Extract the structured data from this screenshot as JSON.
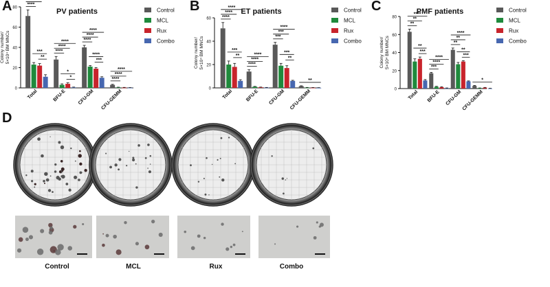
{
  "panels": {
    "a": {
      "letter": "A"
    },
    "b": {
      "letter": "B"
    },
    "c": {
      "letter": "C"
    },
    "d": {
      "letter": "D"
    }
  },
  "colors": {
    "Control": "#595959",
    "MCL": "#1f8a3c",
    "Rux": "#c8242c",
    "Combo": "#4767b0",
    "sig": "#111111"
  },
  "chart_data": [
    {
      "id": "A",
      "type": "bar",
      "title": "PV patients",
      "ylabel_line1": "Colony number/",
      "ylabel_line2": "5×10⁴ BM MNCs",
      "ylim": [
        0,
        80
      ],
      "yticks": [
        0,
        20,
        40,
        60,
        80
      ],
      "categories": [
        "Total",
        "BFU-E",
        "CFU-GM",
        "CFU-GEMM"
      ],
      "series": [
        {
          "name": "Control",
          "values": [
            71,
            28,
            40,
            3
          ],
          "errors": [
            6,
            3,
            2,
            0.5
          ]
        },
        {
          "name": "MCL",
          "values": [
            23,
            3,
            21,
            0.5
          ],
          "errors": [
            2,
            1,
            1,
            0.2
          ]
        },
        {
          "name": "Rux",
          "values": [
            22,
            4,
            19,
            0.3
          ],
          "errors": [
            2,
            1,
            1,
            0.2
          ]
        },
        {
          "name": "Combo",
          "values": [
            11,
            0.5,
            10,
            0.2
          ],
          "errors": [
            2,
            0.3,
            1,
            0.1
          ]
        }
      ],
      "significance": [
        {
          "cat": 0,
          "from": 0,
          "to": 3,
          "label": "****"
        },
        {
          "cat": 0,
          "from": 0,
          "to": 2,
          "label": "****"
        },
        {
          "cat": 0,
          "from": 0,
          "to": 1,
          "label": "****"
        },
        {
          "cat": 0,
          "from": 1,
          "to": 3,
          "label": "***"
        },
        {
          "cat": 0,
          "from": 2,
          "to": 3,
          "label": "**"
        },
        {
          "cat": 1,
          "from": 0,
          "to": 3,
          "label": "****"
        },
        {
          "cat": 1,
          "from": 0,
          "to": 2,
          "label": "****"
        },
        {
          "cat": 1,
          "from": 0,
          "to": 1,
          "label": "****"
        },
        {
          "cat": 1,
          "from": 1,
          "to": 3,
          "label": "*"
        },
        {
          "cat": 1,
          "from": 2,
          "to": 3,
          "label": "*"
        },
        {
          "cat": 2,
          "from": 0,
          "to": 3,
          "label": "****"
        },
        {
          "cat": 2,
          "from": 0,
          "to": 2,
          "label": "****"
        },
        {
          "cat": 2,
          "from": 0,
          "to": 1,
          "label": "****"
        },
        {
          "cat": 2,
          "from": 1,
          "to": 3,
          "label": "****"
        },
        {
          "cat": 2,
          "from": 2,
          "to": 3,
          "label": "***"
        },
        {
          "cat": 3,
          "from": 0,
          "to": 3,
          "label": "****"
        },
        {
          "cat": 3,
          "from": 0,
          "to": 2,
          "label": "****"
        },
        {
          "cat": 3,
          "from": 0,
          "to": 1,
          "label": "****"
        }
      ]
    },
    {
      "id": "B",
      "type": "bar",
      "title": "ET patients",
      "ylabel_line1": "Colony number/",
      "ylabel_line2": "5×10⁴ BM MNCs",
      "ylim": [
        0,
        60
      ],
      "yticks": [
        0,
        20,
        40,
        60
      ],
      "categories": [
        "Total",
        "BFU-E",
        "CFU-GM",
        "CFU-GEMM"
      ],
      "series": [
        {
          "name": "Control",
          "values": [
            51,
            14,
            37,
            1.5
          ],
          "errors": [
            5,
            1.5,
            2,
            0.3
          ]
        },
        {
          "name": "MCL",
          "values": [
            20,
            1,
            19,
            0.3
          ],
          "errors": [
            3,
            0.3,
            2,
            0.1
          ]
        },
        {
          "name": "Rux",
          "values": [
            18,
            0.5,
            17,
            0.2
          ],
          "errors": [
            3,
            0.2,
            2,
            0.1
          ]
        },
        {
          "name": "Combo",
          "values": [
            6,
            0.3,
            6,
            0.1
          ],
          "errors": [
            1,
            0.1,
            0.5,
            0.1
          ]
        }
      ],
      "significance": [
        {
          "cat": 0,
          "from": 0,
          "to": 3,
          "label": "****"
        },
        {
          "cat": 0,
          "from": 0,
          "to": 2,
          "label": "****"
        },
        {
          "cat": 0,
          "from": 0,
          "to": 1,
          "label": "****"
        },
        {
          "cat": 0,
          "from": 1,
          "to": 3,
          "label": "***"
        },
        {
          "cat": 0,
          "from": 2,
          "to": 3,
          "label": "**"
        },
        {
          "cat": 1,
          "from": 0,
          "to": 3,
          "label": "****"
        },
        {
          "cat": 1,
          "from": 0,
          "to": 2,
          "label": "****"
        },
        {
          "cat": 1,
          "from": 0,
          "to": 1,
          "label": "****"
        },
        {
          "cat": 2,
          "from": 0,
          "to": 3,
          "label": "****"
        },
        {
          "cat": 2,
          "from": 0,
          "to": 2,
          "label": "***"
        },
        {
          "cat": 2,
          "from": 0,
          "to": 1,
          "label": "***"
        },
        {
          "cat": 2,
          "from": 1,
          "to": 3,
          "label": "***"
        },
        {
          "cat": 2,
          "from": 2,
          "to": 3,
          "label": "**"
        },
        {
          "cat": 3,
          "from": 0,
          "to": 3,
          "label": "**"
        }
      ]
    },
    {
      "id": "C",
      "type": "bar",
      "title": "PMF patients",
      "ylabel_line1": "Colony number/",
      "ylabel_line2": "5×10⁴ BM MNCs",
      "ylim": [
        0,
        80
      ],
      "yticks": [
        0,
        20,
        40,
        60,
        80
      ],
      "categories": [
        "Total",
        "BFU-E",
        "CFU-GM",
        "CFU-GEMM"
      ],
      "series": [
        {
          "name": "Control",
          "values": [
            63,
            17,
            43,
            3
          ],
          "errors": [
            3,
            1,
            2,
            0.5
          ]
        },
        {
          "name": "MCL",
          "values": [
            30,
            2,
            27,
            0.5
          ],
          "errors": [
            3,
            0.5,
            2,
            0.2
          ]
        },
        {
          "name": "Rux",
          "values": [
            33,
            1.5,
            30,
            1
          ],
          "errors": [
            2,
            0.5,
            1,
            0.3
          ]
        },
        {
          "name": "Combo",
          "values": [
            9,
            0.5,
            8,
            0.2
          ],
          "errors": [
            1,
            0.2,
            0.5,
            0.1
          ]
        }
      ],
      "significance": [
        {
          "cat": 0,
          "from": 0,
          "to": 3,
          "label": "****"
        },
        {
          "cat": 0,
          "from": 0,
          "to": 2,
          "label": "**"
        },
        {
          "cat": 0,
          "from": 0,
          "to": 1,
          "label": "**"
        },
        {
          "cat": 0,
          "from": 1,
          "to": 3,
          "label": "**"
        },
        {
          "cat": 0,
          "from": 2,
          "to": 3,
          "label": "***"
        },
        {
          "cat": 1,
          "from": 0,
          "to": 3,
          "label": "****"
        },
        {
          "cat": 1,
          "from": 0,
          "to": 2,
          "label": "****"
        },
        {
          "cat": 1,
          "from": 0,
          "to": 1,
          "label": "***"
        },
        {
          "cat": 2,
          "from": 0,
          "to": 3,
          "label": "****"
        },
        {
          "cat": 2,
          "from": 0,
          "to": 2,
          "label": "**"
        },
        {
          "cat": 2,
          "from": 0,
          "to": 1,
          "label": "**"
        },
        {
          "cat": 2,
          "from": 1,
          "to": 3,
          "label": "**"
        },
        {
          "cat": 2,
          "from": 2,
          "to": 3,
          "label": "***"
        },
        {
          "cat": 3,
          "from": 0,
          "to": 3,
          "label": "*"
        }
      ]
    }
  ],
  "legend": [
    "Control",
    "MCL",
    "Rux",
    "Combo"
  ],
  "images": {
    "captions": [
      "Control",
      "MCL",
      "Rux",
      "Combo"
    ],
    "colony_density": [
      1.0,
      0.45,
      0.35,
      0.15
    ]
  }
}
